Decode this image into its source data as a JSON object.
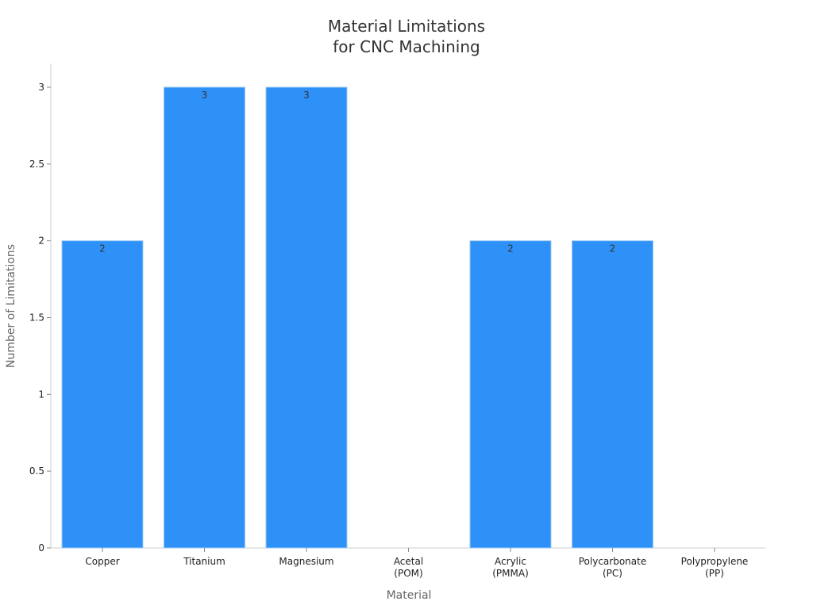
{
  "chart_data": {
    "type": "bar",
    "title": "Material Limitations for CNC Machining",
    "title_lines": [
      "Material Limitations",
      "for CNC Machining"
    ],
    "xlabel": "Material",
    "ylabel": "Number of Limitations",
    "categories": [
      "Copper",
      "Titanium",
      "Magnesium",
      "Acetal (POM)",
      "Acrylic (PMMA)",
      "Polycarbonate (PC)",
      "Polypropylene (PP)"
    ],
    "category_label_lines": [
      [
        "Copper"
      ],
      [
        "Titanium"
      ],
      [
        "Magnesium"
      ],
      [
        "Acetal",
        "(POM)"
      ],
      [
        "Acrylic",
        "(PMMA)"
      ],
      [
        "Polycarbonate",
        "(PC)"
      ],
      [
        "Polypropylene",
        "(PP)"
      ]
    ],
    "values": [
      2,
      3,
      3,
      0,
      2,
      2,
      0
    ],
    "data_labels": [
      "2",
      "3",
      "3",
      "",
      "2",
      "2",
      ""
    ],
    "ylim": [
      0,
      3.15
    ],
    "yticks": [
      0,
      0.5,
      1,
      1.5,
      2,
      2.5,
      3
    ],
    "ytick_labels": [
      "0",
      "0.5",
      "1",
      "1.5",
      "2",
      "2.5",
      "3"
    ],
    "grid": false,
    "legend": null,
    "bar_color": "#2e91f7",
    "bar_edge_color": "#9cc9f5"
  }
}
